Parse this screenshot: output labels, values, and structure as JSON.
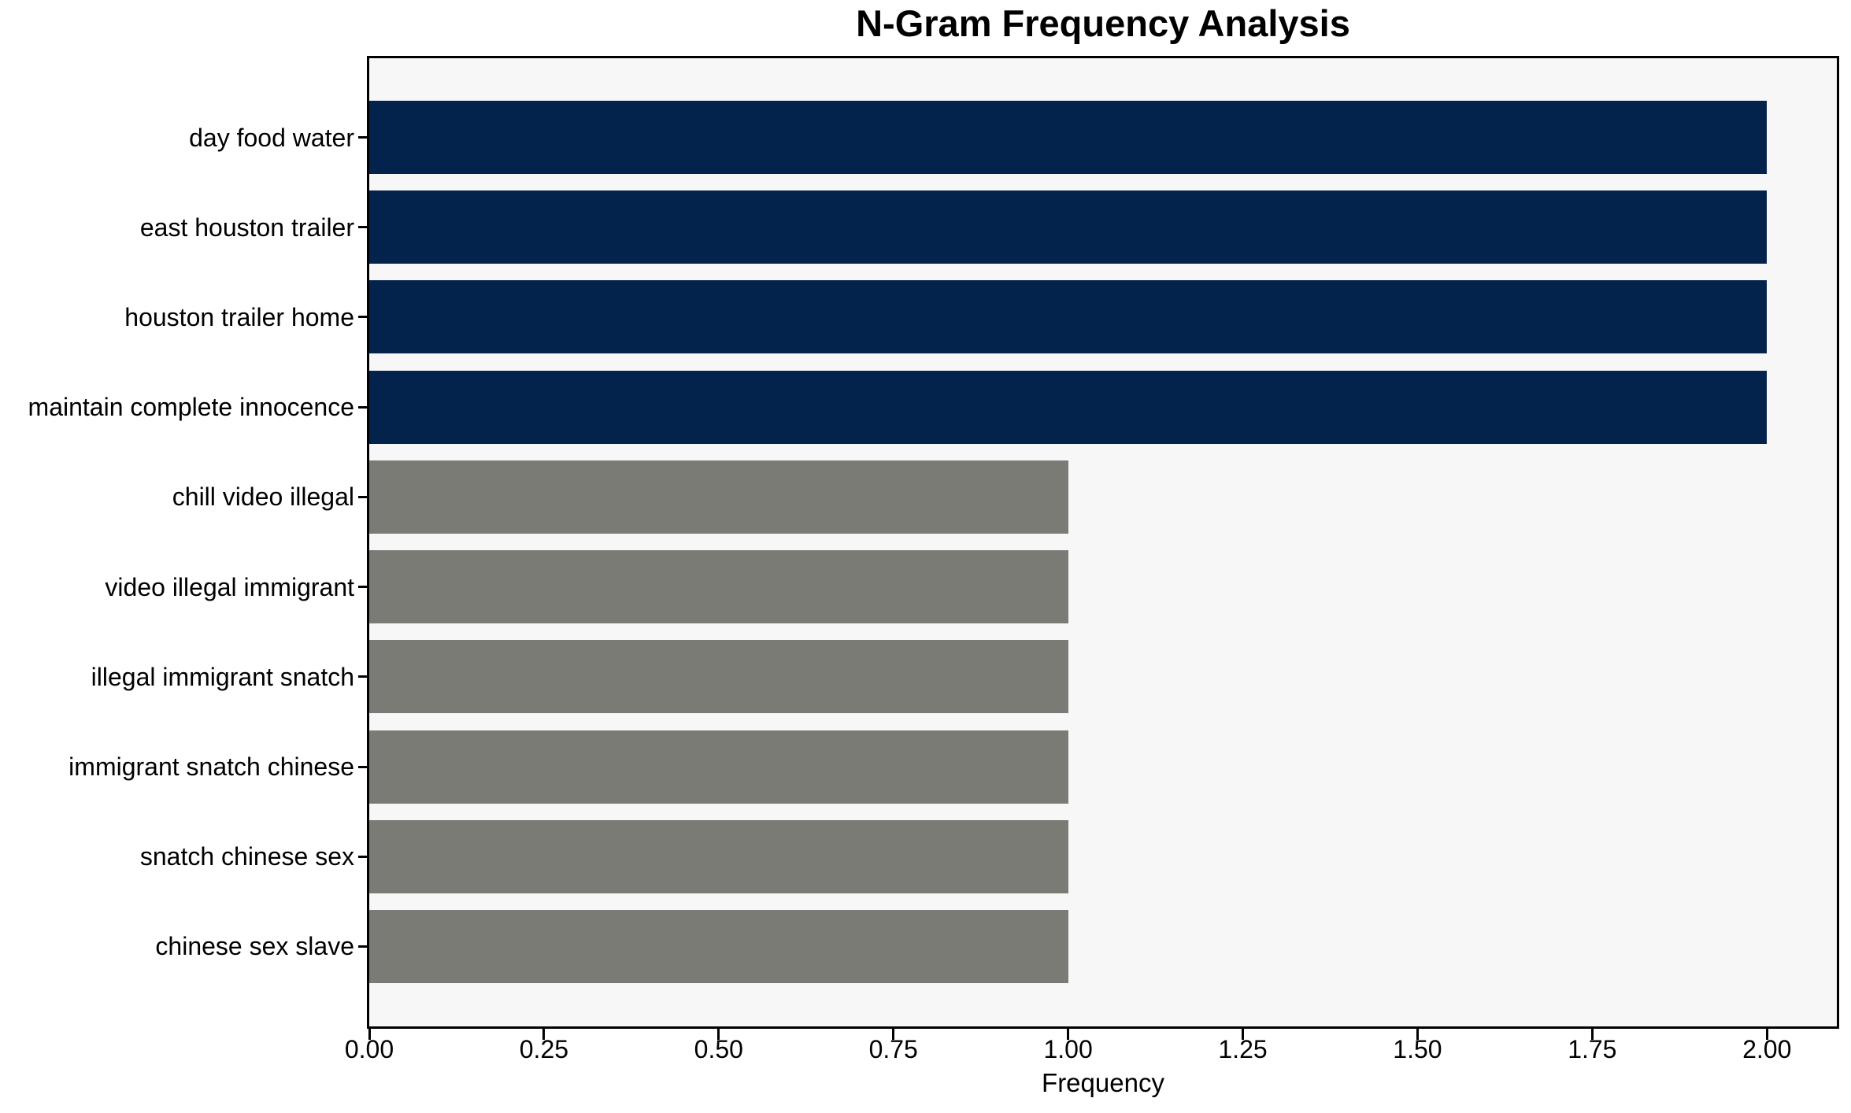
{
  "chart_data": {
    "type": "bar",
    "orientation": "horizontal",
    "title": "N-Gram Frequency Analysis",
    "xlabel": "Frequency",
    "ylabel": "",
    "categories": [
      "day food water",
      "east houston trailer",
      "houston trailer home",
      "maintain complete innocence",
      "chill video illegal",
      "video illegal immigrant",
      "illegal immigrant snatch",
      "immigrant snatch chinese",
      "snatch chinese sex",
      "chinese sex slave"
    ],
    "values": [
      2,
      2,
      2,
      2,
      1,
      1,
      1,
      1,
      1,
      1
    ],
    "bar_colors": [
      "#03234C",
      "#03234C",
      "#03234C",
      "#03234C",
      "#7B7B76",
      "#7B7B76",
      "#7B7B76",
      "#7B7B76",
      "#7B7B76",
      "#7B7B76"
    ],
    "xlim": [
      0,
      2.1
    ],
    "xticks": {
      "values": [
        0,
        0.25,
        0.5,
        0.75,
        1.0,
        1.25,
        1.5,
        1.75,
        2.0
      ],
      "labels": [
        "0.00",
        "0.25",
        "0.50",
        "0.75",
        "1.00",
        "1.25",
        "1.50",
        "1.75",
        "2.00"
      ]
    },
    "grid": false,
    "legend": null,
    "colors": {
      "bar_highlight": "#03234C",
      "bar_default": "#7B7B76",
      "plot_background": "#F7F7F7",
      "figure_background": "#FFFFFF",
      "axis": "#000000",
      "text": "#000000"
    }
  }
}
